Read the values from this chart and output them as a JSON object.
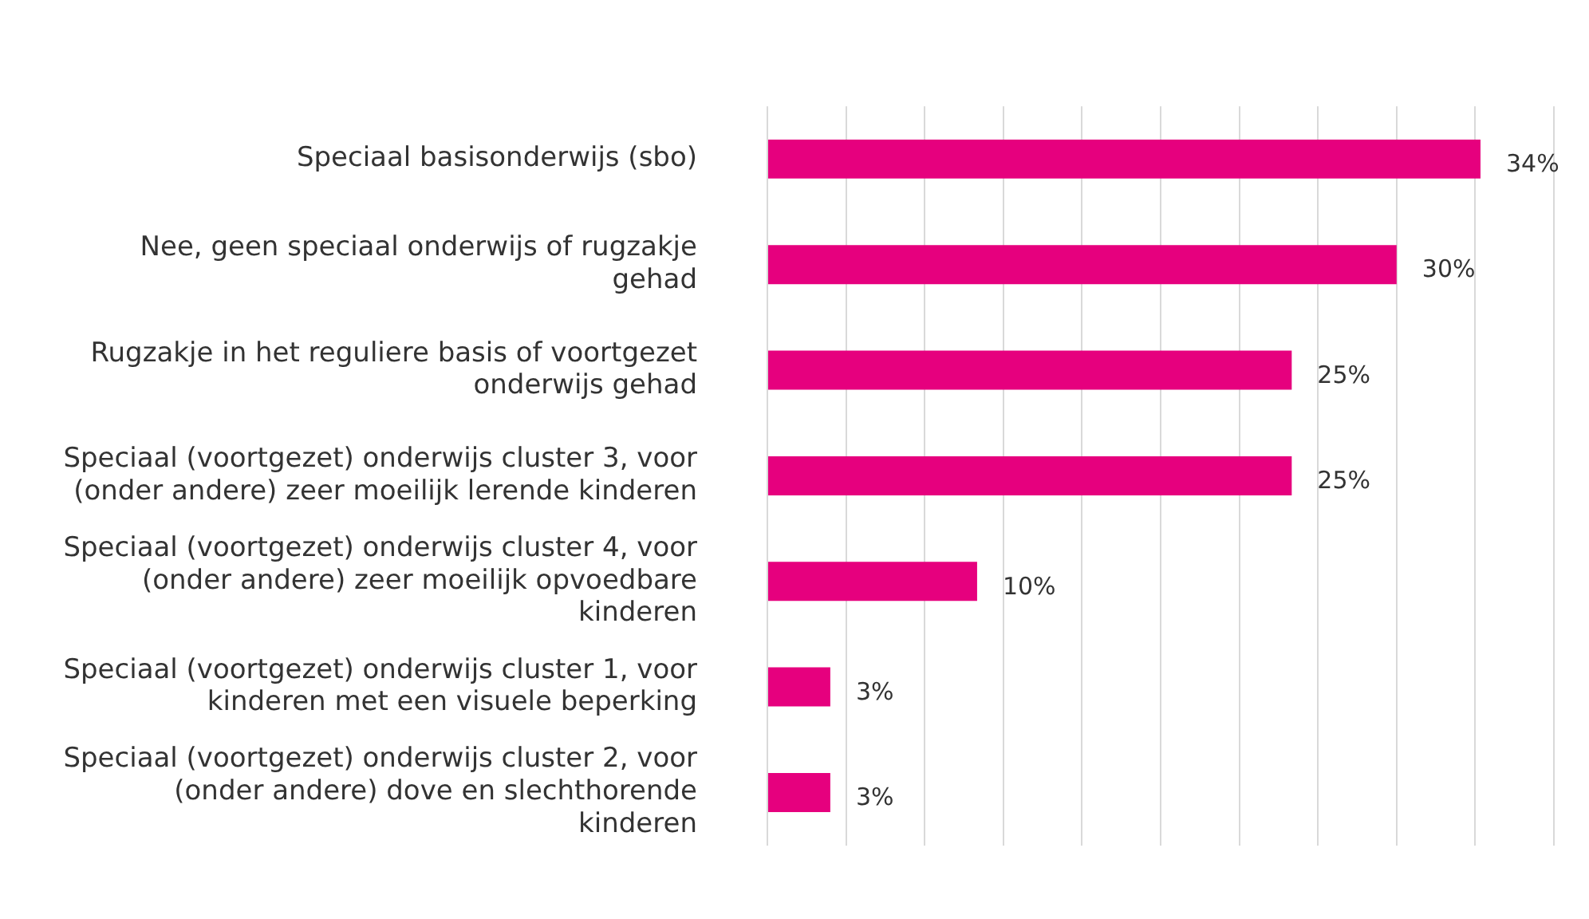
{
  "chart_data": {
    "type": "bar",
    "orientation": "horizontal",
    "categories": [
      "Speciaal basisonderwijs (sbo)",
      "Nee, geen speciaal onderwijs of rugzakje gehad",
      "Rugzakje in het reguliere basis of voortgezet onderwijs gehad",
      "Speciaal (voortgezet) onderwijs cluster 3, voor (onder andere) zeer moeilijk lerende kinderen",
      "Speciaal (voortgezet) onderwijs cluster 4, voor (onder andere) zeer moeilijk opvoedbare kinderen",
      "Speciaal (voortgezet) onderwijs cluster 1, voor kinderen met een visuele beperking",
      "Speciaal (voortgezet) onderwijs cluster 2, voor (onder andere) dove en slechthorende kinderen"
    ],
    "values": [
      34,
      30,
      25,
      25,
      10,
      3,
      3
    ],
    "value_labels": [
      "34%",
      "30%",
      "25%",
      "25%",
      "10%",
      "3%",
      "3%"
    ],
    "color": "#e6007e",
    "xlim": [
      0,
      37.5
    ],
    "xticks": [
      {
        "value": 0,
        "label": null
      },
      {
        "value": 3.75,
        "label": null
      },
      {
        "value": 7.5,
        "label": null
      },
      {
        "value": 11.25,
        "label": null
      },
      {
        "value": 15,
        "label": null
      },
      {
        "value": 18.75,
        "label": null
      },
      {
        "value": 22.5,
        "label": null
      },
      {
        "value": 26.25,
        "label": null
      },
      {
        "value": 30,
        "label": null
      },
      {
        "value": 33.75,
        "label": null
      },
      {
        "value": 37.5,
        "label": null
      }
    ],
    "tick_labels": "y",
    "grid": "x",
    "legend": false
  }
}
